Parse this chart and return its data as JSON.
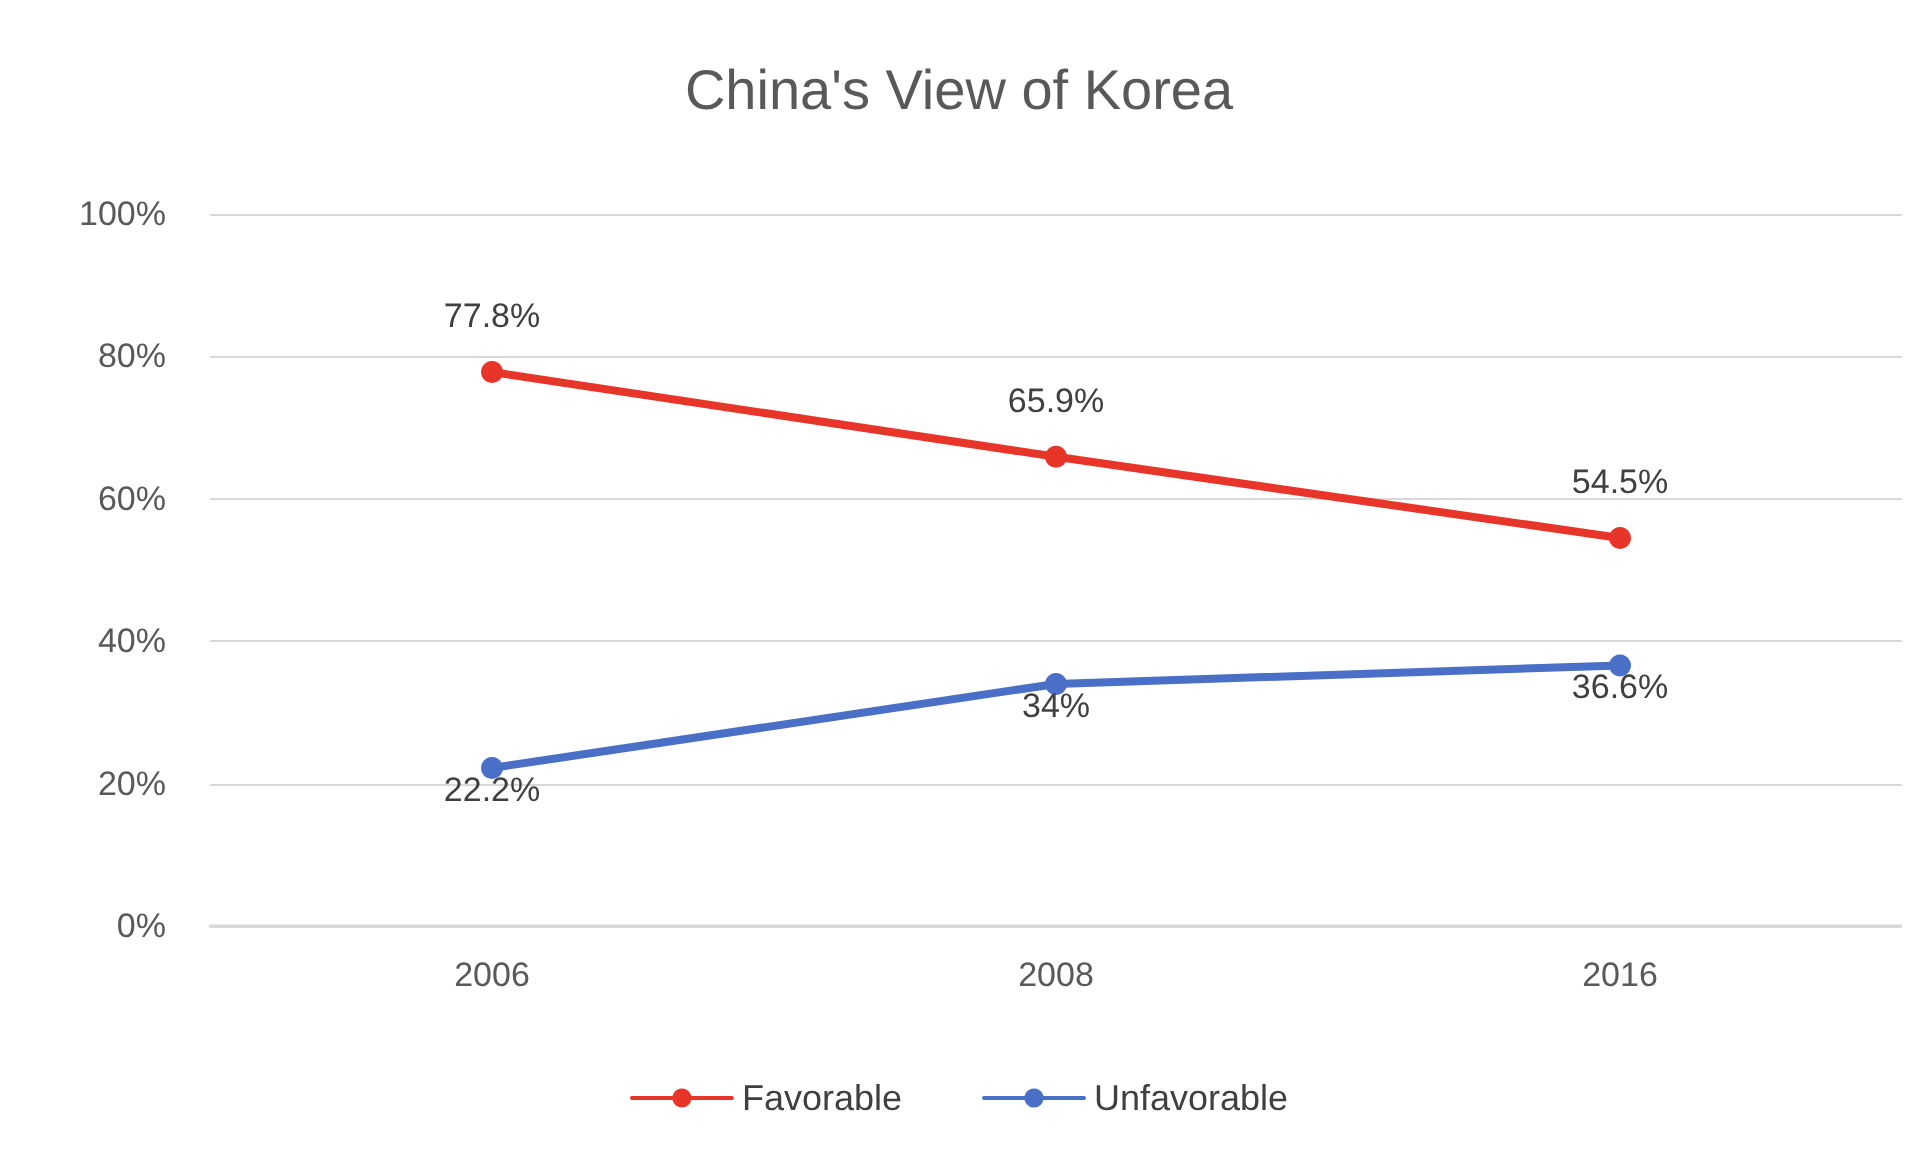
{
  "chart_data": {
    "type": "line",
    "title": "China's View of Korea",
    "categories": [
      "2006",
      "2008",
      "2016"
    ],
    "series": [
      {
        "name": "Favorable",
        "color": "#e8352a",
        "values": [
          77.8,
          65.9,
          54.5
        ],
        "value_labels": [
          "77.8%",
          "65.9%",
          "54.5%"
        ]
      },
      {
        "name": "Unfavorable",
        "color": "#4a6fc6",
        "values": [
          22.2,
          34,
          36.6
        ],
        "value_labels": [
          "22.2%",
          "34%",
          "36.6%"
        ]
      }
    ],
    "ylim": [
      0,
      100
    ],
    "yticks": [
      {
        "value": 0,
        "label": "0%"
      },
      {
        "value": 20,
        "label": "20%"
      },
      {
        "value": 40,
        "label": "40%"
      },
      {
        "value": 60,
        "label": "60%"
      },
      {
        "value": 80,
        "label": "80%"
      },
      {
        "value": 100,
        "label": "100%"
      }
    ],
    "grid": "y",
    "legend": "bottom",
    "marker": "circle",
    "line_style": "solid"
  }
}
